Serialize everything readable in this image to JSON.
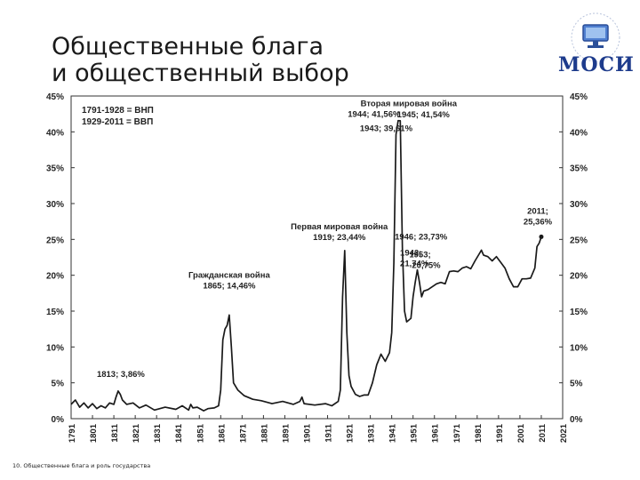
{
  "slide": {
    "title_line1": "Общественные блага",
    "title_line2": "и общественный выбор",
    "logo_text": "МОСИ",
    "footer": "10. Общественные блага и роль государства"
  },
  "chart_data": {
    "type": "line",
    "title": "",
    "xlabel": "",
    "ylabel": "",
    "xlim": [
      1791,
      2021
    ],
    "ylim": [
      0,
      45
    ],
    "y_ticks": [
      "0%",
      "5%",
      "10%",
      "15%",
      "20%",
      "25%",
      "30%",
      "35%",
      "40%",
      "45%"
    ],
    "x_ticks": [
      "1791",
      "1801",
      "1811",
      "1821",
      "1831",
      "1841",
      "1851",
      "1861",
      "1871",
      "1881",
      "1891",
      "1901",
      "1911",
      "1921",
      "1931",
      "1941",
      "1951",
      "1961",
      "1971",
      "1981",
      "1991",
      "2001",
      "2011",
      "2021"
    ],
    "grid": false,
    "legend_lines": [
      "1791-1928 = ВНП",
      "1929-2011 = ВВП"
    ],
    "line_color": "#1a1a1a",
    "series": [
      {
        "x": [
          1791,
          1793,
          1795,
          1797,
          1799,
          1801,
          1803,
          1805,
          1807,
          1809,
          1811,
          1812,
          1813,
          1814,
          1815,
          1817,
          1820,
          1823,
          1826,
          1830,
          1835,
          1840,
          1843,
          1846,
          1847,
          1848,
          1850,
          1853,
          1855,
          1858,
          1860,
          1861,
          1862,
          1863,
          1864,
          1865,
          1866,
          1867,
          1869,
          1872,
          1876,
          1880,
          1885,
          1890,
          1895,
          1898,
          1899,
          1900,
          1905,
          1910,
          1913,
          1916,
          1917,
          1918,
          1919,
          1920,
          1921,
          1922,
          1924,
          1926,
          1928,
          1930,
          1932,
          1934,
          1936,
          1938,
          1940,
          1941,
          1942,
          1943,
          1944,
          1945,
          1946,
          1947,
          1948,
          1950,
          1951,
          1952,
          1953,
          1954,
          1955,
          1956,
          1958,
          1960,
          1962,
          1964,
          1966,
          1968,
          1970,
          1972,
          1974,
          1976,
          1978,
          1980,
          1982,
          1983,
          1984,
          1986,
          1988,
          1990,
          1992,
          1994,
          1996,
          1998,
          2000,
          2002,
          2004,
          2006,
          2008,
          2009,
          2010,
          2011
        ],
        "y": [
          2.0,
          2.6,
          1.6,
          2.2,
          1.5,
          2.1,
          1.4,
          1.8,
          1.5,
          2.2,
          2.0,
          3.0,
          3.86,
          3.4,
          2.6,
          2.0,
          2.2,
          1.5,
          1.9,
          1.2,
          1.6,
          1.3,
          1.8,
          1.2,
          2.0,
          1.5,
          1.6,
          1.1,
          1.4,
          1.5,
          1.8,
          4.0,
          11.0,
          12.5,
          13.0,
          14.46,
          10.0,
          5.0,
          4.0,
          3.2,
          2.7,
          2.5,
          2.1,
          2.4,
          2.0,
          2.4,
          3.0,
          2.1,
          1.9,
          2.1,
          1.8,
          2.4,
          4.0,
          17.0,
          23.44,
          12.0,
          6.0,
          4.5,
          3.4,
          3.1,
          3.3,
          3.3,
          5.0,
          7.5,
          9.0,
          8.0,
          9.2,
          12.0,
          21.74,
          39.61,
          41.56,
          41.54,
          23.73,
          15.0,
          13.5,
          14.0,
          17.0,
          19.0,
          20.75,
          19.0,
          17.0,
          17.8,
          18.0,
          18.4,
          18.8,
          19.0,
          18.8,
          20.5,
          20.6,
          20.5,
          21.0,
          21.2,
          20.9,
          22.0,
          23.0,
          23.5,
          22.8,
          22.6,
          22.0,
          22.6,
          21.8,
          21.0,
          19.5,
          18.4,
          18.4,
          19.5,
          19.5,
          19.6,
          21.0,
          24.0,
          24.5,
          25.36
        ]
      }
    ],
    "annotations": [
      {
        "text": "1813; 3,86%",
        "x": 1813,
        "y": 3.86
      },
      {
        "text": "Гражданская война",
        "x": 1865,
        "y": 14.46
      },
      {
        "text": "1865; 14,46%",
        "x": 1865,
        "y": 14.46
      },
      {
        "text": "Первая мировая война",
        "x": 1919,
        "y": 23.44
      },
      {
        "text": "1919; 23,44%",
        "x": 1919,
        "y": 23.44
      },
      {
        "text": "1942;",
        "x": 1942,
        "y": 21.74
      },
      {
        "text": "21,74%",
        "x": 1942,
        "y": 21.74
      },
      {
        "text": "Вторая мировая война",
        "x": 1944,
        "y": 41.56
      },
      {
        "text": "1944; 41,56%",
        "x": 1944,
        "y": 41.56
      },
      {
        "text": "1945; 41,54%",
        "x": 1945,
        "y": 41.54
      },
      {
        "text": "1943; 39,61%",
        "x": 1943,
        "y": 39.61
      },
      {
        "text": "1946; 23,73%",
        "x": 1946,
        "y": 23.73
      },
      {
        "text": "1953;",
        "x": 1953,
        "y": 20.75
      },
      {
        "text": "20,75%",
        "x": 1953,
        "y": 20.75
      },
      {
        "text": "2011;",
        "x": 2011,
        "y": 25.36
      },
      {
        "text": "25,36%",
        "x": 2011,
        "y": 25.36
      }
    ]
  }
}
